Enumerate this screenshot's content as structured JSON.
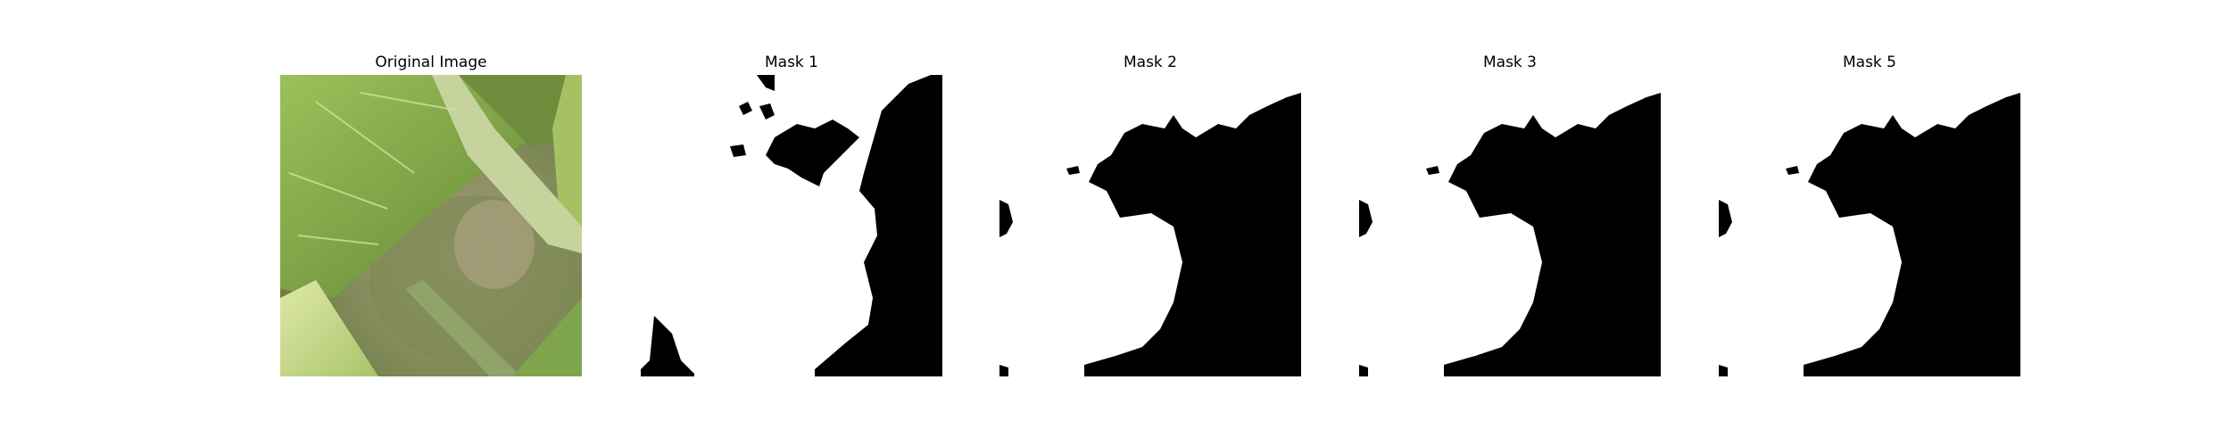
{
  "panels": [
    {
      "title": "Original Image",
      "kind": "photo"
    },
    {
      "title": "Mask 1",
      "kind": "mask"
    },
    {
      "title": "Mask 2",
      "kind": "mask"
    },
    {
      "title": "Mask 3",
      "kind": "mask"
    },
    {
      "title": "Mask 5",
      "kind": "mask"
    }
  ],
  "colors": {
    "background": "#ffffff",
    "mask_foreground": "#ffffff",
    "mask_background": "#000000",
    "leaf_dark": "#587a2e",
    "leaf_light": "#b7cf7a",
    "stem": "#c9d6a2",
    "blur_brown": "#9a8d72"
  }
}
